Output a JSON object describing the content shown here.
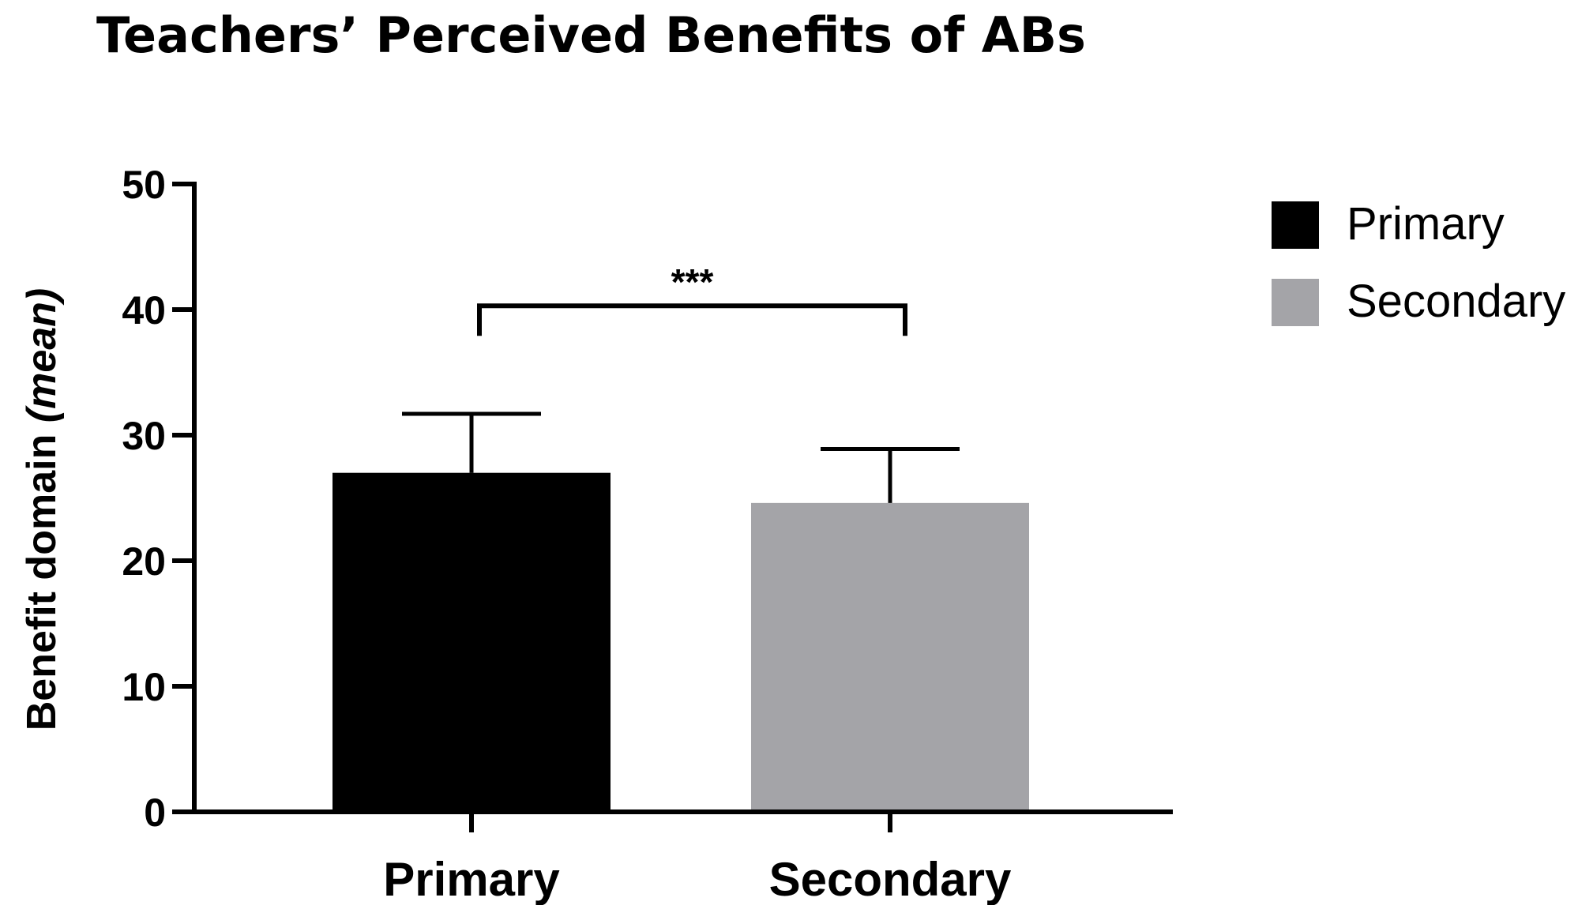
{
  "chart_data": {
    "type": "bar",
    "title": "Teachers’ Perceived Benefits of ABs",
    "ylabel_main": "Benefit domain ",
    "ylabel_italic": "(mean)",
    "ylim": [
      0,
      50
    ],
    "yticks": [
      {
        "value": 0,
        "label": "0"
      },
      {
        "value": 10,
        "label": "10"
      },
      {
        "value": 20,
        "label": "20"
      },
      {
        "value": 30,
        "label": "30"
      },
      {
        "value": 40,
        "label": "40"
      },
      {
        "value": 50,
        "label": "50"
      }
    ],
    "categories": [
      "Primary",
      "Secondary"
    ],
    "series": [
      {
        "name": "Primary",
        "value": 27.0,
        "error_upper": 31.7,
        "color": "#000000"
      },
      {
        "name": "Secondary",
        "value": 24.6,
        "error_upper": 28.9,
        "color": "#a4a4a8"
      }
    ],
    "significance": {
      "label": "***",
      "between": [
        "Primary",
        "Secondary"
      ],
      "level": 40.3
    },
    "legend_position": "top-right",
    "grid": false
  }
}
